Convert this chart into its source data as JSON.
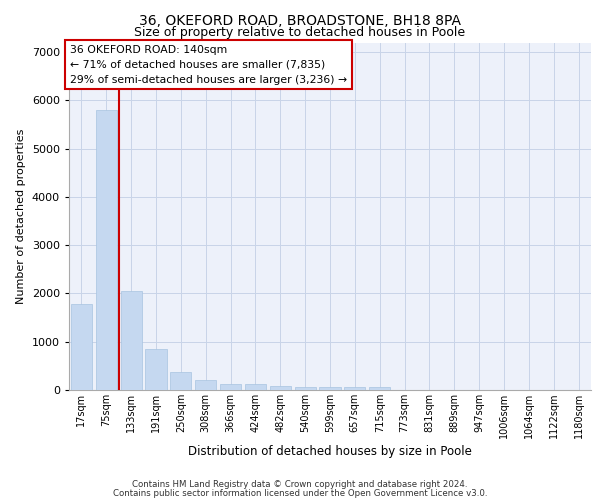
{
  "title_line1": "36, OKEFORD ROAD, BROADSTONE, BH18 8PA",
  "title_line2": "Size of property relative to detached houses in Poole",
  "xlabel": "Distribution of detached houses by size in Poole",
  "ylabel": "Number of detached properties",
  "categories": [
    "17sqm",
    "75sqm",
    "133sqm",
    "191sqm",
    "250sqm",
    "308sqm",
    "366sqm",
    "424sqm",
    "482sqm",
    "540sqm",
    "599sqm",
    "657sqm",
    "715sqm",
    "773sqm",
    "831sqm",
    "889sqm",
    "947sqm",
    "1006sqm",
    "1064sqm",
    "1122sqm",
    "1180sqm"
  ],
  "values": [
    1780,
    5800,
    2060,
    840,
    380,
    215,
    130,
    120,
    85,
    70,
    65,
    60,
    55,
    0,
    0,
    0,
    0,
    0,
    0,
    0,
    0
  ],
  "bar_color": "#c5d8f0",
  "bar_edge_color": "#a8c4e0",
  "annotation_text": "36 OKEFORD ROAD: 140sqm\n← 71% of detached houses are smaller (7,835)\n29% of semi-detached houses are larger (3,236) →",
  "annotation_box_facecolor": "#ffffff",
  "annotation_box_edgecolor": "#cc0000",
  "ylim": [
    0,
    7200
  ],
  "yticks": [
    0,
    1000,
    2000,
    3000,
    4000,
    5000,
    6000,
    7000
  ],
  "red_line_color": "#cc0000",
  "grid_color": "#c8d4e8",
  "background_color": "#edf1fa",
  "footer_line1": "Contains HM Land Registry data © Crown copyright and database right 2024.",
  "footer_line2": "Contains public sector information licensed under the Open Government Licence v3.0.",
  "title1_fontsize": 10,
  "title2_fontsize": 9,
  "ylabel_fontsize": 8,
  "xlabel_fontsize": 8.5,
  "tick_fontsize": 7,
  "ytick_fontsize": 8,
  "footer_fontsize": 6.2,
  "annot_fontsize": 7.8
}
